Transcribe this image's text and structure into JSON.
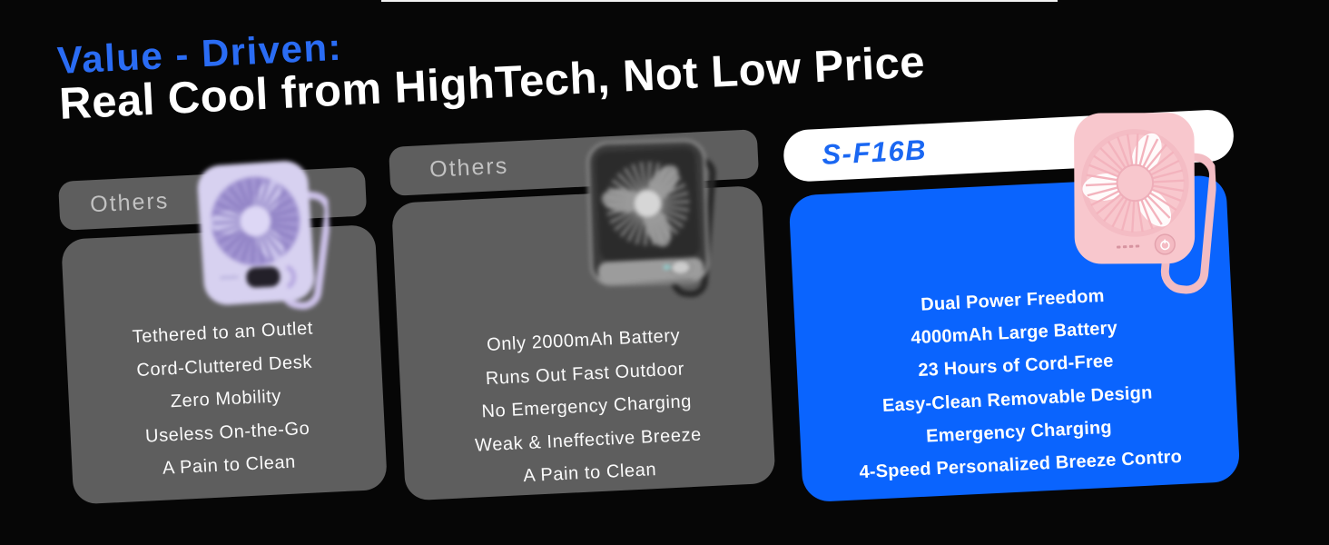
{
  "header": {
    "eyebrow": "Value - Driven:",
    "title": "Real Cool from HighTech, Not Low Price"
  },
  "cards": [
    {
      "label": "Others",
      "fan_color": "purple",
      "features": [
        "Tethered to an Outlet",
        "Cord-Cluttered Desk",
        "Zero Mobility",
        "Useless On-the-Go",
        "A Pain to Clean"
      ]
    },
    {
      "label": "Others",
      "fan_color": "black",
      "features": [
        "Only 2000mAh Battery",
        "Runs Out Fast Outdoor",
        "No Emergency Charging",
        "Weak & Ineffective Breeze",
        "A Pain to Clean"
      ]
    },
    {
      "label": "S-F16B",
      "fan_color": "pink",
      "features": [
        "Dual Power Freedom",
        "4000mAh Large Battery",
        "23 Hours of Cord-Free",
        "Easy-Clean Removable Design",
        "Emergency Charging",
        "4-Speed Personalized Breeze Contro"
      ]
    }
  ],
  "colors": {
    "background": "#060606",
    "accent_blue": "#2A6CF4",
    "title_white": "#FFFFFF",
    "hero_card_blue": "#0A64FE",
    "model_label_blue": "#1A67F2",
    "competitor_card_gray": "#5E5E5E",
    "competitor_label_gray": "#C2C2C2"
  }
}
